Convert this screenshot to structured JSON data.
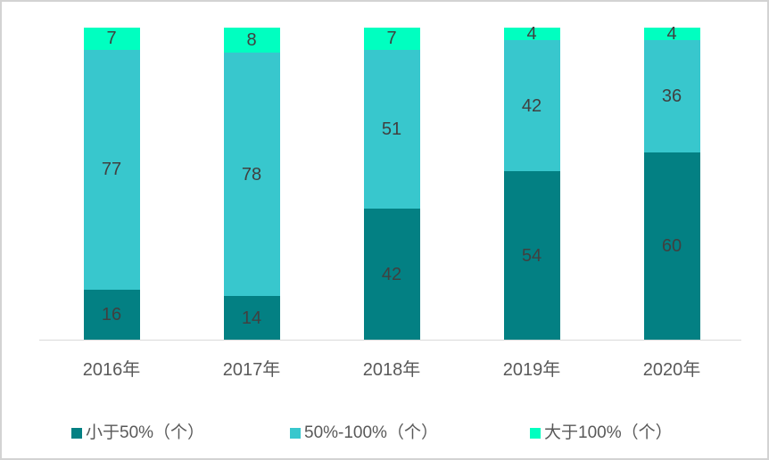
{
  "chart_data": {
    "type": "bar",
    "stacked": true,
    "orientation": "vertical",
    "categories": [
      "2016年",
      "2017年",
      "2018年",
      "2019年",
      "2020年"
    ],
    "series": [
      {
        "name": "小于50%（个）",
        "color": "#038083",
        "values": [
          16,
          14,
          42,
          54,
          60
        ]
      },
      {
        "name": "50%-100%（个）",
        "color": "#38C7CD",
        "values": [
          77,
          78,
          51,
          42,
          36
        ]
      },
      {
        "name": "大于100%（个）",
        "color": "#00FFC0",
        "values": [
          7,
          8,
          7,
          4,
          4
        ]
      }
    ],
    "ylim": [
      0,
      100
    ],
    "grid": false,
    "y_axis_visible": false,
    "data_labels": true,
    "legend_position": "bottom",
    "colors": {
      "data_label": "#404040",
      "axis_label": "#595959",
      "legend_label": "#595959",
      "axis_line": "#D9D9D9",
      "background": "#FFFFFF",
      "border": "#D3D3D3"
    }
  }
}
